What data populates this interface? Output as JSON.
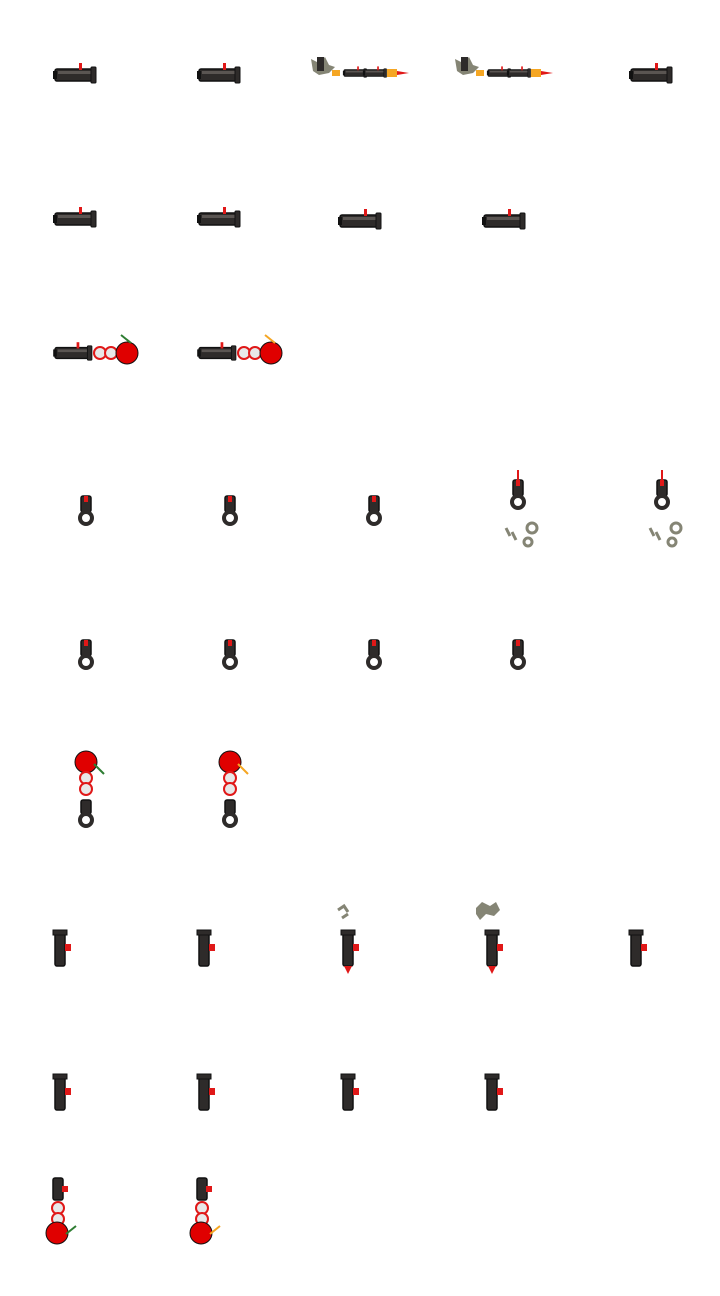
{
  "sheet": {
    "kind": "sprite-sheet",
    "subject": "cannon",
    "background": "#ffffff",
    "colors": {
      "barrel": "#2e2b2a",
      "barrel_highlight": "#5a5552",
      "outline": "#111111",
      "fuse_red": "#e01818",
      "flame_orange": "#f5a623",
      "smoke": "#858575",
      "fuse_green": "#2e7d32",
      "chain_white": "#e8e8e8",
      "ball_red": "#e00000"
    }
  },
  "rows": [
    {
      "name": "cannon-horizontal-idle-fire",
      "orientation": "right",
      "frames": [
        {
          "state": "idle"
        },
        {
          "state": "idle"
        },
        {
          "state": "firing",
          "effects": [
            "smoke-puff",
            "muzzle-flame"
          ]
        },
        {
          "state": "firing",
          "effects": [
            "smoke-puff",
            "muzzle-flame"
          ]
        },
        {
          "state": "idle"
        }
      ]
    },
    {
      "name": "cannon-horizontal-recoil",
      "orientation": "right",
      "frames": [
        {
          "state": "idle"
        },
        {
          "state": "idle"
        },
        {
          "state": "recoil"
        },
        {
          "state": "recoil"
        }
      ]
    },
    {
      "name": "cannon-horizontal-chained-ball",
      "orientation": "right",
      "frames": [
        {
          "state": "chained-ball",
          "fuse": "green"
        },
        {
          "state": "chained-ball",
          "fuse": "orange"
        }
      ]
    },
    {
      "name": "cannon-down-idle-fire",
      "orientation": "down",
      "frames": [
        {
          "state": "idle"
        },
        {
          "state": "idle"
        },
        {
          "state": "idle"
        },
        {
          "state": "firing",
          "effects": [
            "smoke-cloud"
          ]
        },
        {
          "state": "firing",
          "effects": [
            "smoke-cloud"
          ]
        }
      ]
    },
    {
      "name": "cannon-down-recoil",
      "orientation": "down",
      "frames": [
        {
          "state": "idle"
        },
        {
          "state": "idle"
        },
        {
          "state": "idle"
        },
        {
          "state": "recoil"
        }
      ]
    },
    {
      "name": "cannon-down-chained-ball",
      "orientation": "down",
      "frames": [
        {
          "state": "chained-ball",
          "fuse": "green"
        },
        {
          "state": "chained-ball",
          "fuse": "orange"
        }
      ]
    },
    {
      "name": "cannon-up-idle-fire",
      "orientation": "up",
      "frames": [
        {
          "state": "idle"
        },
        {
          "state": "idle"
        },
        {
          "state": "firing",
          "effects": [
            "smoke-puff"
          ]
        },
        {
          "state": "firing",
          "effects": [
            "smoke-cloud"
          ]
        },
        {
          "state": "idle"
        }
      ]
    },
    {
      "name": "cannon-up-recoil",
      "orientation": "up",
      "frames": [
        {
          "state": "idle"
        },
        {
          "state": "idle"
        },
        {
          "state": "idle"
        },
        {
          "state": "idle"
        }
      ]
    },
    {
      "name": "cannon-up-chained-ball",
      "orientation": "up",
      "frames": [
        {
          "state": "chained-ball",
          "fuse": "green"
        },
        {
          "state": "chained-ball",
          "fuse": "orange"
        }
      ]
    }
  ]
}
